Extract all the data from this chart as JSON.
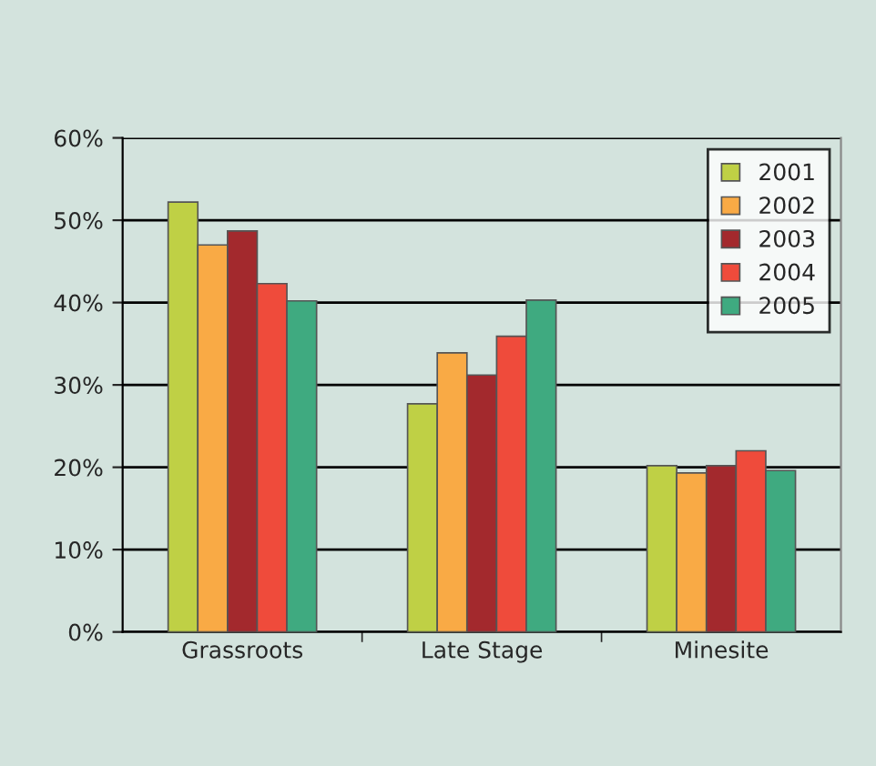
{
  "chart_data": {
    "type": "bar",
    "categories": [
      "Grassroots",
      "Late Stage",
      "Minesite"
    ],
    "series": [
      {
        "name": "2001",
        "color": "#bfd045",
        "values": [
          52.2,
          27.7,
          20.2
        ]
      },
      {
        "name": "2002",
        "color": "#f9aa45",
        "values": [
          47.0,
          33.9,
          19.3
        ]
      },
      {
        "name": "2003",
        "color": "#a3292d",
        "values": [
          48.7,
          31.2,
          20.2
        ]
      },
      {
        "name": "2004",
        "color": "#ef4b3b",
        "values": [
          42.3,
          35.9,
          22.0
        ]
      },
      {
        "name": "2005",
        "color": "#3faa80",
        "values": [
          40.2,
          40.3,
          19.6
        ]
      }
    ],
    "ylim": [
      0,
      60
    ],
    "yticks": [
      {
        "value": 0,
        "label": "0%"
      },
      {
        "value": 10,
        "label": "10%"
      },
      {
        "value": 20,
        "label": "20%"
      },
      {
        "value": 30,
        "label": "30%"
      },
      {
        "value": 40,
        "label": "40%"
      },
      {
        "value": 50,
        "label": "50%"
      },
      {
        "value": 60,
        "label": "60%"
      }
    ],
    "grid": "y",
    "legend": "top right"
  }
}
